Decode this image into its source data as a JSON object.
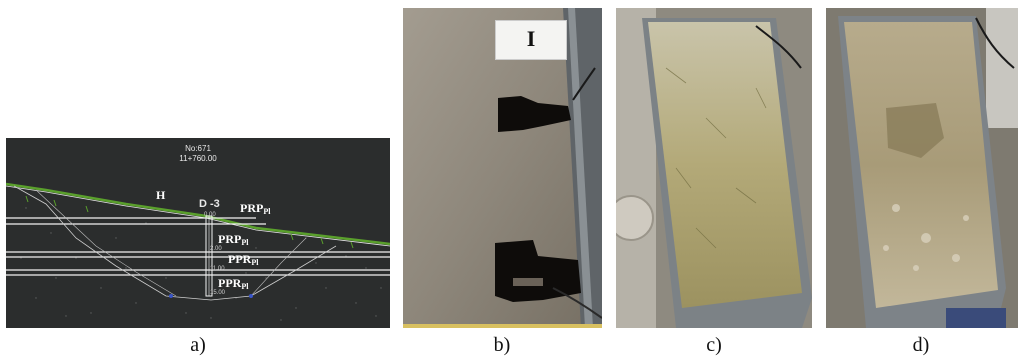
{
  "panel_a": {
    "header_line1": "No:671",
    "header_line2": "11+760.00",
    "label_h": "H",
    "label_d": "D",
    "label_d_value": "-3",
    "prp_top": "PRP",
    "prp_top_sub": "Pl",
    "prp_mid": "PRP",
    "prp_mid_sub": "Pl",
    "ppr_mid": "PPR",
    "ppr_mid_sub": "Pl",
    "ppr_bot": "PPR",
    "ppr_bot_sub": "Pl",
    "depth_1": "0.00",
    "depth_2": "2.00",
    "depth_3": "11.00",
    "depth_4": "15.00"
  },
  "panel_b": {
    "sign": "I"
  },
  "captions": {
    "a": "a)",
    "b": "b)",
    "c": "c)",
    "d": "d)"
  },
  "colors": {
    "cad_bg": "#2b2d2d",
    "ground_line": "#5aa02c",
    "tray_gray": "#9aa0a4"
  }
}
